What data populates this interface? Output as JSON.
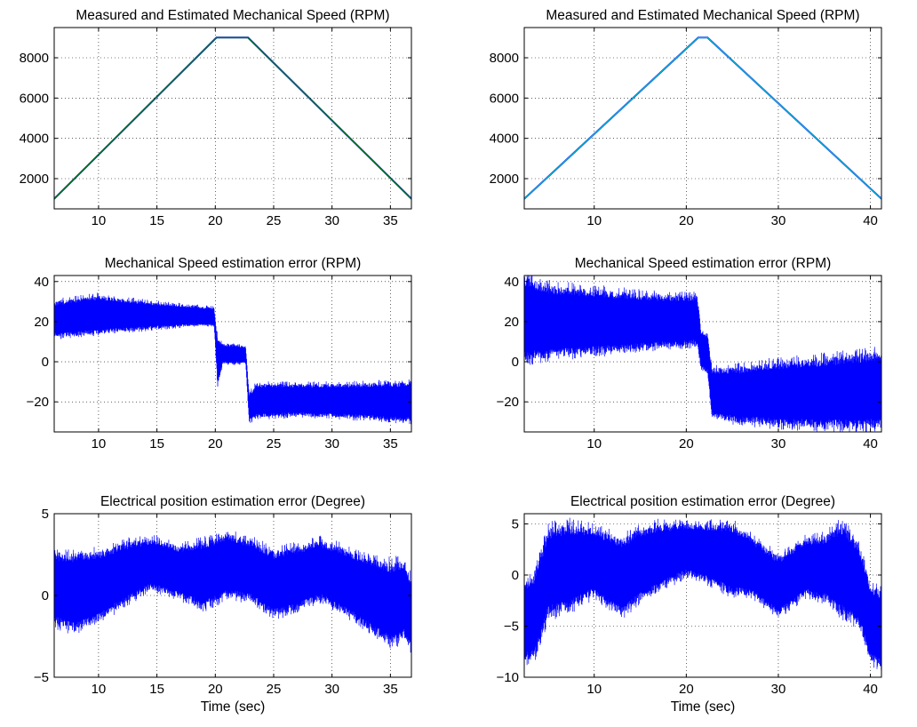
{
  "chart_data": [
    {
      "id": "speed-left",
      "type": "line",
      "title": "Measured and Estimated Mechanical Speed (RPM)",
      "xlabel": "",
      "ylabel": "",
      "xlim": [
        6.2,
        36.8
      ],
      "ylim": [
        500,
        9500
      ],
      "xticks": [
        10,
        15,
        20,
        25,
        30,
        35
      ],
      "yticks": [
        2000,
        4000,
        6000,
        8000
      ],
      "grid": true,
      "series": [
        {
          "color": "#0000ff",
          "x": [
            6.2,
            20.1,
            22.8,
            36.8
          ],
          "y": [
            1000,
            9000,
            9000,
            1000
          ]
        },
        {
          "color": "#008000",
          "x": [
            6.2,
            20.1,
            22.8,
            36.8
          ],
          "y": [
            1000,
            9000,
            9000,
            1000
          ]
        }
      ]
    },
    {
      "id": "speed-right",
      "type": "line",
      "title": "Measured and Estimated Mechanical Speed (RPM)",
      "xlabel": "",
      "ylabel": "",
      "xlim": [
        2.4,
        41.2
      ],
      "ylim": [
        500,
        9500
      ],
      "xticks": [
        10,
        20,
        30,
        40
      ],
      "yticks": [
        2000,
        4000,
        6000,
        8000
      ],
      "grid": true,
      "series": [
        {
          "color": "#0000ff",
          "x": [
            2.4,
            21.3,
            22.3,
            41.2
          ],
          "y": [
            1000,
            9000,
            9000,
            1000
          ]
        },
        {
          "color": "#00bfbf",
          "x": [
            2.4,
            21.3,
            22.3,
            41.2
          ],
          "y": [
            1000,
            9000,
            9000,
            1000
          ]
        }
      ]
    },
    {
      "id": "error-left",
      "type": "line",
      "title": "Mechanical Speed estimation error (RPM)",
      "xlabel": "",
      "ylabel": "",
      "xlim": [
        6.2,
        36.8
      ],
      "ylim": [
        -35,
        43
      ],
      "xticks": [
        10,
        15,
        20,
        25,
        30,
        35
      ],
      "yticks": [
        -20,
        0,
        20,
        40
      ],
      "grid": true,
      "series": [
        {
          "color": "#0000ff",
          "x": [
            6.2,
            10,
            14,
            18,
            19.9,
            20.2,
            20.6,
            22.6,
            22.9,
            23.5,
            27,
            31,
            36.8
          ],
          "y_upper": [
            30,
            33,
            30,
            28,
            27,
            12,
            9,
            8,
            -16,
            -11,
            -11,
            -11,
            -10
          ],
          "y_lower": [
            12,
            14,
            16,
            18,
            18,
            -13,
            -1,
            -1,
            -30,
            -28,
            -27,
            -28,
            -30
          ]
        }
      ]
    },
    {
      "id": "error-right",
      "type": "line",
      "title": "Mechanical Speed estimation error (RPM)",
      "xlabel": "",
      "ylabel": "",
      "xlim": [
        2.4,
        41.2
      ],
      "ylim": [
        -35,
        43
      ],
      "xticks": [
        10,
        20,
        30,
        40
      ],
      "yticks": [
        -20,
        0,
        20,
        40
      ],
      "grid": true,
      "series": [
        {
          "color": "#0000ff",
          "x": [
            2.4,
            5,
            10,
            15,
            20,
            21.2,
            21.6,
            22.3,
            22.8,
            25,
            30,
            35,
            41.2
          ],
          "y_upper": [
            43,
            38,
            36,
            34,
            33,
            33,
            16,
            14,
            -3,
            -3,
            0,
            2,
            5
          ],
          "y_lower": [
            0,
            2,
            4,
            6,
            8,
            8,
            -4,
            -6,
            -28,
            -30,
            -32,
            -33,
            -33
          ]
        }
      ]
    },
    {
      "id": "position-left",
      "type": "line",
      "title": "Electrical position estimation error (Degree)",
      "xlabel": "Time (sec)",
      "ylabel": "",
      "xlim": [
        6.2,
        36.8
      ],
      "ylim": [
        -5,
        5
      ],
      "xticks": [
        10,
        15,
        20,
        25,
        30,
        35
      ],
      "yticks": [
        -5,
        0,
        5
      ],
      "grid": true,
      "series": [
        {
          "color": "#0000ff",
          "x": [
            6.2,
            8,
            10,
            12,
            14.5,
            17,
            19,
            21,
            23,
            25,
            27,
            29,
            31,
            33,
            35,
            36.2,
            36.8
          ],
          "y_upper": [
            2.6,
            2.6,
            2.7,
            3.2,
            3.5,
            3.0,
            3.3,
            3.8,
            3.4,
            2.7,
            3.0,
            3.4,
            2.9,
            2.4,
            2.0,
            2.2,
            1.0
          ],
          "y_lower": [
            -1.8,
            -2.2,
            -1.6,
            -0.6,
            0.4,
            -0.2,
            -0.8,
            -0.1,
            -0.3,
            -1.3,
            -0.9,
            -0.3,
            -1.1,
            -2.0,
            -3.1,
            -2.6,
            -3.4
          ]
        }
      ]
    },
    {
      "id": "position-right",
      "type": "line",
      "title": "Electrical position estimation error (Degree)",
      "xlabel": "Time (sec)",
      "ylabel": "",
      "xlim": [
        2.4,
        41.2
      ],
      "ylim": [
        -10,
        6
      ],
      "xticks": [
        10,
        20,
        30,
        40
      ],
      "yticks": [
        -10,
        -5,
        0,
        5
      ],
      "grid": true,
      "series": [
        {
          "color": "#0000ff",
          "x": [
            2.4,
            3.5,
            5,
            7,
            10,
            13,
            15,
            17,
            20,
            23,
            25,
            27,
            30,
            33,
            35,
            37,
            38.8,
            40,
            41.2
          ],
          "y_upper": [
            -1,
            0,
            4.5,
            5,
            4.6,
            3.5,
            4.6,
            5,
            5,
            5,
            5,
            3.8,
            1.8,
            3.6,
            3.8,
            5,
            3,
            -1,
            -1.5
          ],
          "y_lower": [
            -8.5,
            -8,
            -4,
            -3.5,
            -2,
            -4,
            -2.5,
            -1.5,
            0,
            -1,
            -2,
            -2,
            -4,
            -2,
            -2.5,
            -4,
            -5,
            -8.5,
            -9
          ]
        }
      ]
    }
  ]
}
